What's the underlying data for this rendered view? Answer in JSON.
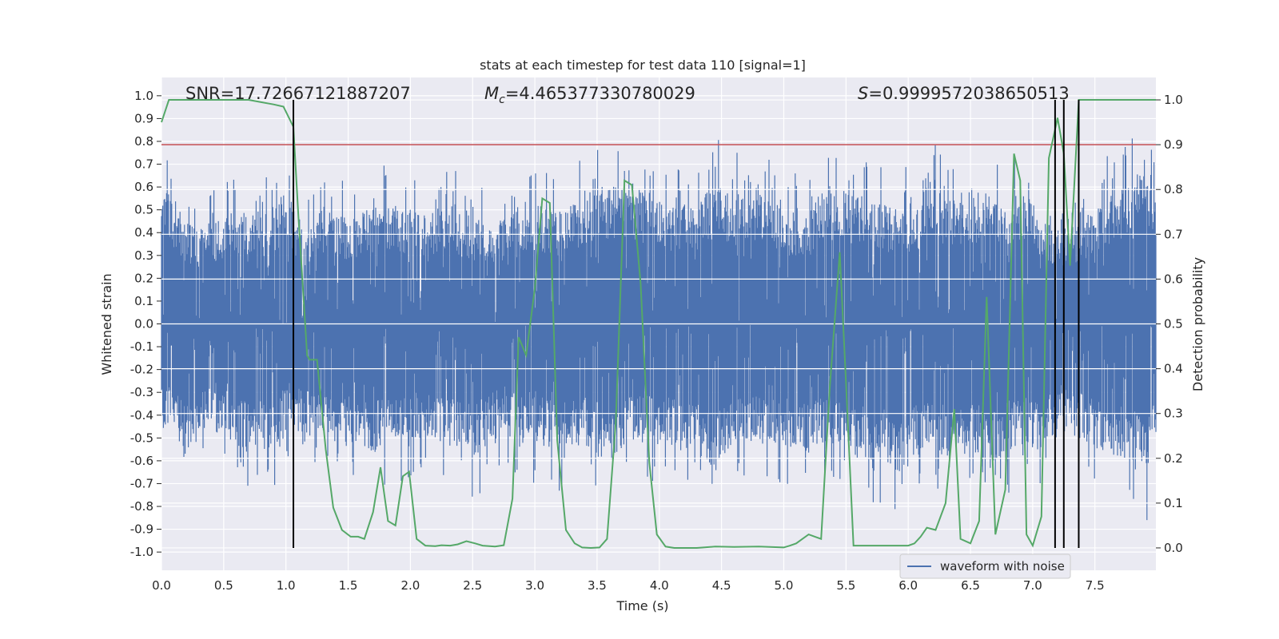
{
  "chart_data": {
    "type": "line",
    "title": "stats at each timestep for test data 110 [signal=1]",
    "xlabel": "Time (s)",
    "ylabel": "Whitened strain",
    "y2label": "Detection probability",
    "xlim": [
      0.0,
      7.99
    ],
    "ylim": [
      -1.08,
      1.08
    ],
    "y2lim": [
      -0.05,
      1.05
    ],
    "grid": true,
    "x_ticks": [
      "0.0",
      "0.5",
      "1.0",
      "1.5",
      "2.0",
      "2.5",
      "3.0",
      "3.5",
      "4.0",
      "4.5",
      "5.0",
      "5.5",
      "6.0",
      "6.5",
      "7.0",
      "7.5"
    ],
    "y_ticks": [
      "1.0",
      "0.9",
      "0.8",
      "0.7",
      "0.6",
      "0.5",
      "0.4",
      "0.3",
      "0.2",
      "0.1",
      "0.0",
      "-0.1",
      "-0.2",
      "-0.3",
      "-0.4",
      "-0.5",
      "-0.6",
      "-0.7",
      "-0.8",
      "-0.9",
      "-1.0"
    ],
    "y2_ticks": [
      "1.0",
      "0.9",
      "0.8",
      "0.7",
      "0.6",
      "0.5",
      "0.4",
      "0.3",
      "0.2",
      "0.1",
      "0.0"
    ],
    "annotations": {
      "snr": "SNR=17.72667121887207",
      "mc_symbol": "M",
      "mc_sub": "c",
      "mc_value": "=4.465377330780029",
      "s_symbol": "S",
      "s_value": "=0.9999572038650513"
    },
    "threshold": {
      "y2": 0.9,
      "color": "#c44e52"
    },
    "vertical_lines_x": [
      1.06,
      7.18,
      7.25,
      7.37
    ],
    "waveform": {
      "name": "waveform with noise",
      "color": "#4c72b0",
      "envelope": [
        [
          0.0,
          0.8,
          -0.6
        ],
        [
          0.1,
          0.74,
          -0.62
        ],
        [
          0.2,
          0.6,
          -0.78
        ],
        [
          0.3,
          0.55,
          -0.6
        ],
        [
          0.5,
          0.64,
          -0.65
        ],
        [
          0.7,
          0.67,
          -0.77
        ],
        [
          0.8,
          0.62,
          -0.66
        ],
        [
          0.9,
          0.68,
          -0.72
        ],
        [
          1.0,
          0.8,
          -0.62
        ],
        [
          1.1,
          0.62,
          -0.63
        ],
        [
          1.2,
          0.58,
          -0.6
        ],
        [
          1.3,
          0.69,
          -0.66
        ],
        [
          1.5,
          0.62,
          -0.7
        ],
        [
          1.7,
          0.7,
          -0.75
        ],
        [
          1.9,
          0.7,
          -0.72
        ],
        [
          2.1,
          0.65,
          -0.65
        ],
        [
          2.3,
          0.7,
          -0.7
        ],
        [
          2.5,
          0.62,
          -0.79
        ],
        [
          2.7,
          0.6,
          -0.63
        ],
        [
          2.9,
          0.68,
          -0.7
        ],
        [
          3.0,
          0.7,
          -0.7
        ],
        [
          3.2,
          0.66,
          -0.75
        ],
        [
          3.4,
          0.76,
          -0.7
        ],
        [
          3.6,
          0.82,
          -0.82
        ],
        [
          3.75,
          0.8,
          -0.7
        ],
        [
          3.9,
          0.78,
          -0.7
        ],
        [
          4.1,
          0.7,
          -0.72
        ],
        [
          4.3,
          0.71,
          -0.78
        ],
        [
          4.45,
          0.82,
          -0.89
        ],
        [
          4.6,
          0.75,
          -0.7
        ],
        [
          4.8,
          0.82,
          -0.7
        ],
        [
          5.0,
          0.67,
          -0.72
        ],
        [
          5.2,
          0.65,
          -0.78
        ],
        [
          5.3,
          0.78,
          -0.7
        ],
        [
          5.5,
          0.8,
          -0.7
        ],
        [
          5.6,
          0.76,
          -0.79
        ],
        [
          5.8,
          0.7,
          -0.8
        ],
        [
          5.9,
          0.68,
          -0.89
        ],
        [
          6.1,
          0.7,
          -0.76
        ],
        [
          6.15,
          0.91,
          -0.7
        ],
        [
          6.3,
          0.75,
          -0.8
        ],
        [
          6.5,
          0.78,
          -0.75
        ],
        [
          6.7,
          0.8,
          -0.82
        ],
        [
          6.8,
          0.74,
          -0.75
        ],
        [
          6.95,
          0.8,
          -0.7
        ],
        [
          7.05,
          0.62,
          -0.75
        ],
        [
          7.2,
          0.55,
          -0.62
        ],
        [
          7.4,
          0.58,
          -0.68
        ],
        [
          7.6,
          0.75,
          -0.75
        ],
        [
          7.8,
          0.82,
          -0.82
        ],
        [
          7.9,
          0.97,
          -0.97
        ],
        [
          7.99,
          0.8,
          -0.68
        ]
      ]
    },
    "probability": {
      "color": "#55a868",
      "x": [
        0.0,
        0.06,
        0.2,
        0.5,
        0.7,
        0.8,
        0.9,
        0.98,
        1.06,
        1.1,
        1.17,
        1.19,
        1.25,
        1.32,
        1.38,
        1.45,
        1.52,
        1.58,
        1.63,
        1.7,
        1.76,
        1.82,
        1.88,
        1.94,
        1.99,
        2.05,
        2.12,
        2.2,
        2.25,
        2.32,
        2.38,
        2.45,
        2.52,
        2.58,
        2.68,
        2.75,
        2.82,
        2.87,
        2.93,
        3.0,
        3.06,
        3.12,
        3.18,
        3.25,
        3.32,
        3.38,
        3.45,
        3.52,
        3.58,
        3.65,
        3.72,
        3.78,
        3.85,
        3.92,
        3.98,
        4.05,
        4.12,
        4.2,
        4.3,
        4.45,
        4.6,
        4.8,
        5.0,
        5.05,
        5.1,
        5.15,
        5.2,
        5.25,
        5.3,
        5.37,
        5.45,
        5.5,
        5.56,
        5.62,
        5.7,
        5.8,
        5.9,
        6.0,
        6.05,
        6.1,
        6.15,
        6.22,
        6.3,
        6.37,
        6.42,
        6.5,
        6.57,
        6.63,
        6.7,
        6.78,
        6.85,
        6.9,
        6.95,
        7.0,
        7.07,
        7.13,
        7.2,
        7.25,
        7.3,
        7.37,
        7.42,
        7.5,
        7.6,
        7.8,
        7.99
      ],
      "y": [
        0.95,
        1.0,
        1.0,
        1.0,
        1.0,
        0.995,
        0.99,
        0.985,
        0.94,
        0.74,
        0.43,
        0.42,
        0.42,
        0.22,
        0.09,
        0.04,
        0.025,
        0.025,
        0.02,
        0.08,
        0.18,
        0.06,
        0.05,
        0.16,
        0.17,
        0.02,
        0.005,
        0.004,
        0.006,
        0.005,
        0.008,
        0.015,
        0.01,
        0.005,
        0.003,
        0.006,
        0.11,
        0.47,
        0.43,
        0.58,
        0.78,
        0.77,
        0.24,
        0.04,
        0.01,
        0.001,
        0.0,
        0.001,
        0.02,
        0.28,
        0.82,
        0.81,
        0.59,
        0.19,
        0.03,
        0.003,
        0.0,
        0.0,
        0.0,
        0.003,
        0.002,
        0.003,
        0.001,
        0.005,
        0.01,
        0.02,
        0.03,
        0.025,
        0.02,
        0.36,
        0.66,
        0.37,
        0.005,
        0.005,
        0.005,
        0.005,
        0.005,
        0.005,
        0.01,
        0.025,
        0.045,
        0.04,
        0.1,
        0.31,
        0.02,
        0.01,
        0.06,
        0.56,
        0.03,
        0.13,
        0.88,
        0.82,
        0.03,
        0.005,
        0.07,
        0.87,
        0.96,
        0.88,
        0.63,
        1.0,
        1.0,
        1.0,
        1.0,
        1.0,
        1.0
      ]
    }
  }
}
